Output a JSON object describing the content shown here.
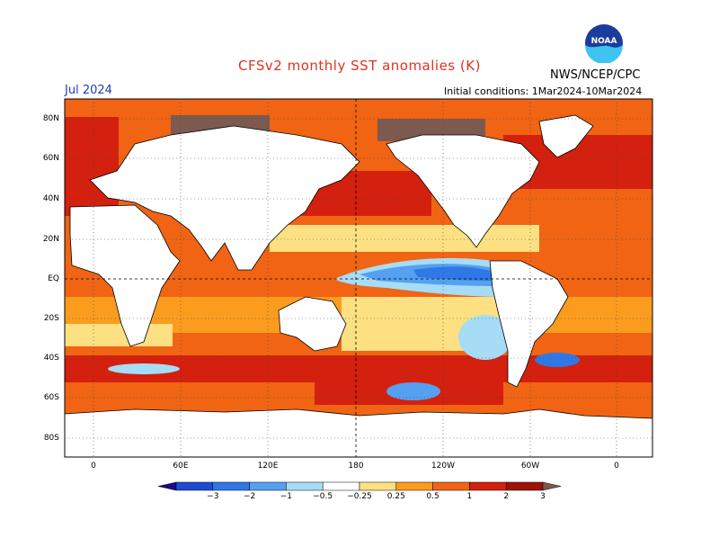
{
  "title": "CFSv2 monthly SST anomalies (K)",
  "agency": "NWS/NCEP/CPC",
  "logo_text": "NOAA",
  "valid_month": "Jul 2024",
  "initial_conditions": "Initial conditions: 1Mar2024-10Mar2024",
  "lat_labels": [
    "80N",
    "60N",
    "40N",
    "20N",
    "EQ",
    "20S",
    "40S",
    "60S",
    "80S"
  ],
  "lon_labels": [
    "0",
    "60E",
    "120E",
    "180",
    "120W",
    "60W",
    "0"
  ],
  "colorbar": {
    "labels": [
      "−3",
      "−2",
      "−1",
      "−0.5",
      "−0.25",
      "0.25",
      "0.5",
      "1",
      "2",
      "3"
    ],
    "colors": [
      "#1a0a8c",
      "#1e4bd2",
      "#2f79e6",
      "#55a0f0",
      "#a6dcf5",
      "#ffffff",
      "#fce082",
      "#fb9c1e",
      "#f06414",
      "#d4200e",
      "#9e1208",
      "#7d5a50"
    ]
  },
  "colors": {
    "land": "#ffffff",
    "warm_strong": "#d4200e",
    "warm": "#f06414",
    "warm_light": "#fb9c1e",
    "warm_pale": "#fce082",
    "cool": "#55a0f0",
    "cool_strong": "#1e4bd2",
    "sea_ice": "#7d5a50"
  }
}
